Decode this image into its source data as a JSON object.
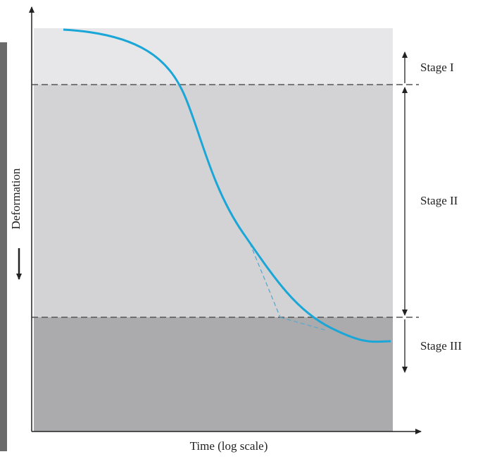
{
  "stages": [
    "Stage I",
    "Stage II",
    "Stage III"
  ],
  "y_axis_label": "Deformation",
  "x_axis_label": "Time (log scale)"
}
